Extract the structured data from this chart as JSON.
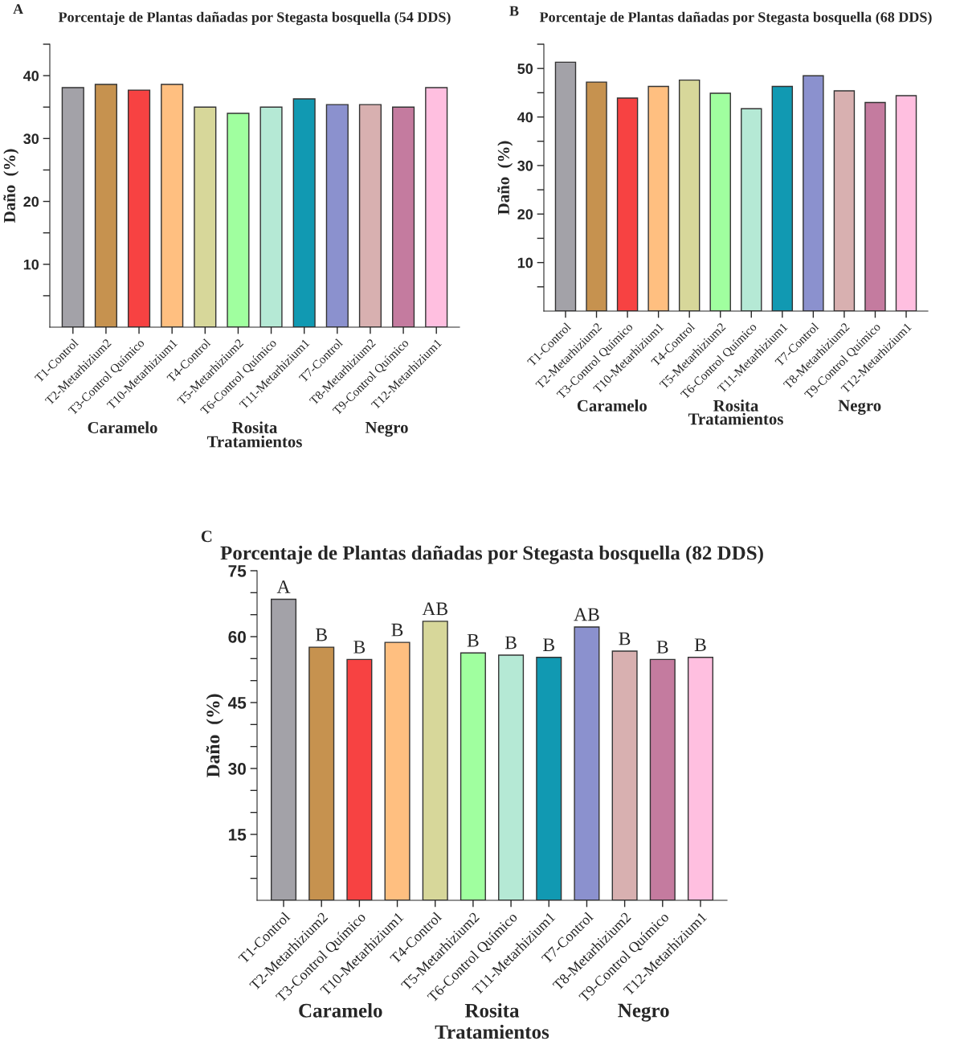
{
  "chart_data": [
    {
      "type": "bar",
      "title": "Porcentaje de Plantas dañadas por Stegasta bosquella (54 DDS)",
      "ylabel": "Daño  (%)",
      "xlabel": "Tratamientos",
      "categories": [
        "T1-Control",
        "T2-Metarhizium2",
        "T3-Control Químico",
        "T10-Metarhizium1",
        "T4-Control",
        "T5-Metarhizium2",
        "T6-Control Químico",
        "T11-Metarhizium1",
        "T7-Control",
        "T8-Metarhizium2",
        "T9-Control Químico",
        "T12-Metarhizium1"
      ],
      "values": [
        38.1,
        38.6,
        37.7,
        38.6,
        35.0,
        34.0,
        35.0,
        36.3,
        35.4,
        35.4,
        35.0,
        38.1
      ],
      "colors": [
        "#a3a2a8",
        "#c6924f",
        "#f74242",
        "#ffbf80",
        "#d7d79a",
        "#a0ff9f",
        "#b5e9d5",
        "#1199b2",
        "#8b91ce",
        "#d8b0b0",
        "#c47b9f",
        "#ffbfe0"
      ],
      "ylim": [
        0,
        45
      ],
      "yticks": [
        {
          "value": 5,
          "label": null
        },
        10,
        {
          "value": 15,
          "label": null
        },
        20,
        {
          "value": 25,
          "label": null
        },
        30,
        {
          "value": 35,
          "label": null
        },
        40,
        {
          "value": 45,
          "label": null
        }
      ],
      "annotations": [
        "A",
        "Caramelo",
        "Rosita",
        "Negro"
      ]
    },
    {
      "type": "bar",
      "title": "Porcentaje de Plantas dañadas por Stegasta bosquella (68 DDS)",
      "ylabel": "Daño  (%)",
      "xlabel": "Tratamientos",
      "categories": [
        "T1-Control",
        "T2-Metarhizium2",
        "T3-Control Químico",
        "T10-Metarhizium1",
        "T4-Control",
        "T5-Metarhizium2",
        "T6-Control Químico",
        "T11-Metarhizium1",
        "T7-Control",
        "T8-Metarhizium2",
        "T9-Control Químico",
        "T12-Metarhizium1"
      ],
      "values": [
        51.3,
        47.2,
        43.9,
        46.3,
        47.6,
        44.9,
        41.7,
        46.3,
        48.5,
        45.4,
        43.0,
        44.4
      ],
      "colors": [
        "#a3a2a8",
        "#c6924f",
        "#f74242",
        "#ffbf80",
        "#d7d79a",
        "#a0ff9f",
        "#b5e9d5",
        "#1199b2",
        "#8b91ce",
        "#d8b0b0",
        "#c47b9f",
        "#ffbfe0"
      ],
      "ylim": [
        0,
        55
      ],
      "yticks": [
        {
          "value": 5,
          "label": null
        },
        10,
        {
          "value": 15,
          "label": null
        },
        20,
        {
          "value": 25,
          "label": null
        },
        30,
        {
          "value": 35,
          "label": null
        },
        40,
        {
          "value": 45,
          "label": null
        },
        50,
        {
          "value": 55,
          "label": null
        }
      ],
      "annotations": [
        "B",
        "Caramelo",
        "Rosita",
        "Negro"
      ]
    },
    {
      "type": "bar",
      "title": "Porcentaje de Plantas dañadas por Stegasta bosquella (82 DDS)",
      "ylabel": "Daño  (%)",
      "xlabel": "Tratamientos",
      "categories": [
        "T1-Control",
        "T2-Metarhizium2",
        "T3-Control Químico",
        "T10-Metarhizium1",
        "T4-Control",
        "T5-Metarhizium2",
        "T6-Control Químico",
        "T11-Metarhizium1",
        "T7-Control",
        "T8-Metarhizium2",
        "T9-Control Químico",
        "T12-Metarhizium1"
      ],
      "values": [
        68.5,
        57.6,
        54.8,
        58.7,
        63.5,
        56.3,
        55.8,
        55.3,
        62.2,
        56.7,
        54.8,
        55.3
      ],
      "colors": [
        "#a3a2a8",
        "#c6924f",
        "#f74242",
        "#ffbf80",
        "#d7d79a",
        "#a0ff9f",
        "#b5e9d5",
        "#1199b2",
        "#8b91ce",
        "#d8b0b0",
        "#c47b9f",
        "#ffbfe0"
      ],
      "value_labels": [
        "A",
        "B",
        "B",
        "B",
        "AB",
        "B",
        "B",
        "B",
        "AB",
        "B",
        "B",
        "B"
      ],
      "ylim": [
        0,
        75
      ],
      "yticks": [
        {
          "value": 5,
          "label": null
        },
        {
          "value": 10,
          "label": null
        },
        15,
        {
          "value": 20,
          "label": null
        },
        {
          "value": 25,
          "label": null
        },
        30,
        {
          "value": 35,
          "label": null
        },
        {
          "value": 40,
          "label": null
        },
        45,
        {
          "value": 50,
          "label": null
        },
        {
          "value": 55,
          "label": null
        },
        60,
        {
          "value": 65,
          "label": null
        },
        {
          "value": 70,
          "label": null
        },
        75
      ],
      "annotations": [
        "C",
        "Caramelo",
        "Rosita",
        "Negro"
      ]
    }
  ]
}
